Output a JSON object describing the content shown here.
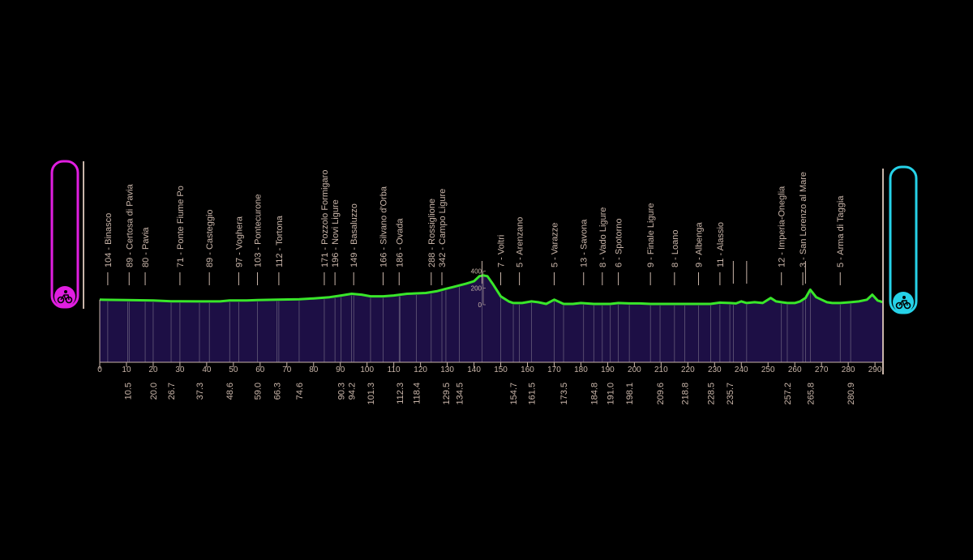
{
  "colors": {
    "background": "#000000",
    "profile_fill": "#1d0f45",
    "profile_line": "#39e62a",
    "text": "#c9b5a9",
    "start_accent": "#e01ee0",
    "finish_accent": "#26d2e8"
  },
  "icons": {
    "start": "cyclist-icon",
    "finish": "finish-cyclist-icon"
  },
  "chart_data": {
    "type": "area",
    "xlim": [
      0,
      293
    ],
    "ylim": [
      0,
      420
    ],
    "x_ticks": [
      "0",
      "10",
      "20",
      "30",
      "40",
      "50",
      "60",
      "70",
      "80",
      "90",
      "100",
      "110",
      "120",
      "130",
      "140",
      "150",
      "160",
      "170",
      "180",
      "190",
      "200",
      "210",
      "220",
      "230",
      "240",
      "250",
      "260",
      "270",
      "280",
      "290"
    ],
    "y_ticks": [
      "0",
      "200",
      "400"
    ],
    "profile": {
      "x": [
        0,
        10,
        20,
        26.7,
        30,
        37.3,
        45,
        48.6,
        55,
        59,
        66.3,
        74.6,
        80,
        86,
        90.3,
        94.2,
        98,
        101.3,
        106,
        110,
        112.3,
        115,
        118.4,
        122,
        126,
        129.5,
        132,
        134.5,
        137,
        140,
        142,
        143.5,
        145,
        147,
        150,
        153,
        154.7,
        158,
        161.5,
        164,
        167,
        170,
        173.5,
        177,
        180,
        184.8,
        188,
        191,
        194,
        198.1,
        202,
        206,
        209.6,
        214,
        218.8,
        223,
        228.5,
        232,
        235.7,
        238,
        240,
        242,
        245,
        248,
        251,
        253,
        255,
        257.2,
        260,
        262,
        264,
        265.8,
        268,
        270,
        272,
        274,
        277,
        280.9,
        284,
        287,
        289,
        291,
        293
      ],
      "y": [
        60,
        55,
        50,
        42,
        42,
        40,
        40,
        50,
        50,
        55,
        60,
        65,
        75,
        90,
        110,
        130,
        120,
        100,
        100,
        110,
        120,
        130,
        135,
        140,
        160,
        190,
        210,
        230,
        250,
        280,
        340,
        350,
        340,
        250,
        100,
        40,
        20,
        20,
        40,
        30,
        10,
        60,
        10,
        10,
        20,
        10,
        10,
        10,
        20,
        15,
        15,
        10,
        10,
        10,
        10,
        10,
        10,
        25,
        20,
        15,
        40,
        20,
        30,
        20,
        80,
        40,
        30,
        20,
        20,
        40,
        80,
        180,
        90,
        60,
        30,
        20,
        20,
        30,
        40,
        60,
        120,
        50,
        30
      ]
    },
    "top_labels": [
      {
        "x": 3,
        "text": "104 - Binasco"
      },
      {
        "x": 11,
        "text": "89 - Certosa di Pavia"
      },
      {
        "x": 17,
        "text": "80 - Pavia"
      },
      {
        "x": 30,
        "text": "71 - Ponte Fiume Po"
      },
      {
        "x": 41,
        "text": "89 - Casteggio"
      },
      {
        "x": 52,
        "text": "97 - Voghera"
      },
      {
        "x": 59,
        "text": "103 - Pontecurone"
      },
      {
        "x": 67,
        "text": "112 - Tortona"
      },
      {
        "x": 84,
        "text": "171 - Pozzolo Formigaro"
      },
      {
        "x": 88,
        "text": "196 - Novi Ligure"
      },
      {
        "x": 95,
        "text": "149 - Basaluzzo"
      },
      {
        "x": 106,
        "text": "166 - Silvano d'Orba"
      },
      {
        "x": 112,
        "text": "186 - Ovada"
      },
      {
        "x": 124,
        "text": "288 - Rossiglione"
      },
      {
        "x": 128,
        "text": "342 - Campo Ligure"
      },
      {
        "x": 150,
        "text": "7 - Voltri"
      },
      {
        "x": 157,
        "text": "5 - Arenzano"
      },
      {
        "x": 170,
        "text": "5 - Varazze"
      },
      {
        "x": 181,
        "text": "13 - Savona"
      },
      {
        "x": 188,
        "text": "8 - Vado Ligure"
      },
      {
        "x": 194,
        "text": "6 - Spotorno"
      },
      {
        "x": 206,
        "text": "9 - Finale Ligure"
      },
      {
        "x": 215,
        "text": "8 - Loano"
      },
      {
        "x": 224,
        "text": "9 - Albenga"
      },
      {
        "x": 232,
        "text": "11 - Alassio"
      },
      {
        "x": 255,
        "text": "12 - Imperia-Oneglia"
      },
      {
        "x": 263,
        "text": "3 - San Lorenzo al Mare"
      },
      {
        "x": 277,
        "text": "5 - Arma di Taggia"
      }
    ],
    "bottom_labels": [
      {
        "x": 10.5,
        "text": "10.5"
      },
      {
        "x": 20,
        "text": "20.0"
      },
      {
        "x": 26.7,
        "text": "26.7"
      },
      {
        "x": 37.3,
        "text": "37.3"
      },
      {
        "x": 48.6,
        "text": "48.6"
      },
      {
        "x": 59,
        "text": "59.0"
      },
      {
        "x": 66.3,
        "text": "66.3"
      },
      {
        "x": 74.6,
        "text": "74.6"
      },
      {
        "x": 90.3,
        "text": "90.3"
      },
      {
        "x": 94.2,
        "text": "94.2"
      },
      {
        "x": 101.3,
        "text": "101.3"
      },
      {
        "x": 112.3,
        "text": "112.3"
      },
      {
        "x": 118.4,
        "text": "118.4"
      },
      {
        "x": 129.5,
        "text": "129.5"
      },
      {
        "x": 134.5,
        "text": "134.5"
      },
      {
        "x": 154.7,
        "text": "154.7"
      },
      {
        "x": 161.5,
        "text": "161.5"
      },
      {
        "x": 173.5,
        "text": "173.5"
      },
      {
        "x": 184.8,
        "text": "184.8"
      },
      {
        "x": 191,
        "text": "191.0"
      },
      {
        "x": 198.1,
        "text": "198.1"
      },
      {
        "x": 209.6,
        "text": "209.6"
      },
      {
        "x": 218.8,
        "text": "218.8"
      },
      {
        "x": 228.5,
        "text": "228.5"
      },
      {
        "x": 235.7,
        "text": "235.7"
      },
      {
        "x": 257.2,
        "text": "257.2"
      },
      {
        "x": 265.8,
        "text": "265.8"
      },
      {
        "x": 280.9,
        "text": "280.9"
      }
    ],
    "extra_markers": [
      143,
      237,
      242,
      264
    ],
    "grid": false,
    "legend": "none"
  }
}
